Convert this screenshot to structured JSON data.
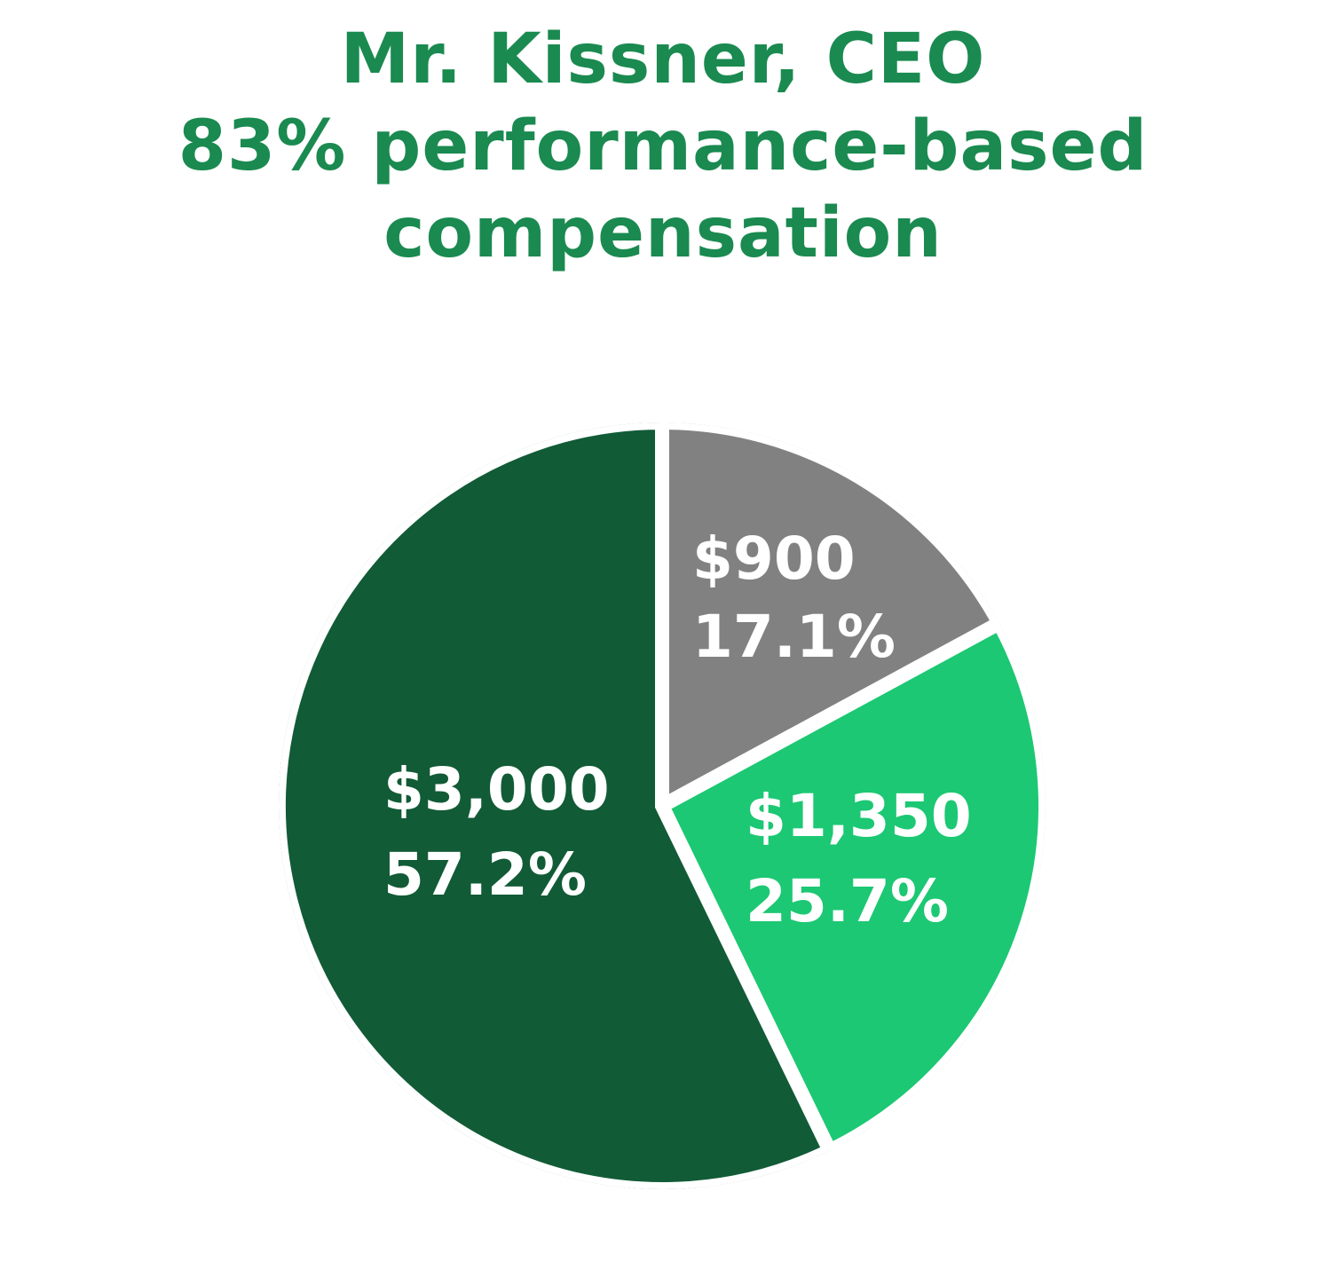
{
  "chart_data": {
    "type": "pie",
    "title_lines": [
      "Mr. Kissner, CEO",
      "83% performance-based",
      "compensation"
    ],
    "slices": [
      {
        "value_label": "$900",
        "percent_label": "17.1%",
        "percent": 17.1,
        "color": "#818181"
      },
      {
        "value_label": "$1,350",
        "percent_label": "25.7%",
        "percent": 25.7,
        "color": "#1cc873"
      },
      {
        "value_label": "$3,000",
        "percent_label": "57.2%",
        "percent": 57.2,
        "color": "#115b36"
      }
    ],
    "title_color": "#1a8a50",
    "separator_color": "#ffffff"
  }
}
